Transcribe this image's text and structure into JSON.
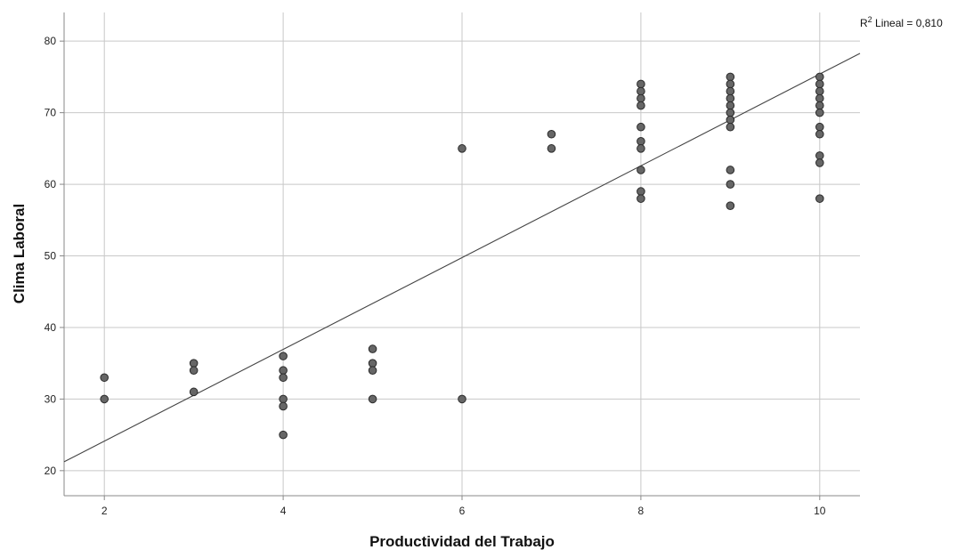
{
  "chart_data": {
    "type": "scatter",
    "title": "",
    "xlabel": "Productividad del Trabajo",
    "ylabel": "Clima Laboral",
    "xlim": [
      1.55,
      10.45
    ],
    "ylim": [
      16.5,
      84
    ],
    "xticks": [
      2,
      4,
      6,
      8,
      10
    ],
    "yticks": [
      20,
      30,
      40,
      50,
      60,
      70,
      80
    ],
    "grid": true,
    "point_color": "#666666",
    "point_edge_color": "#2a2a2a",
    "line_color": "#444444",
    "fit_line": {
      "label": "Lineal",
      "r2_value": "0,810",
      "slope": 6.41,
      "intercept": 11.3
    },
    "points": [
      [
        2,
        33
      ],
      [
        2,
        30
      ],
      [
        3,
        35
      ],
      [
        3,
        34
      ],
      [
        3,
        31
      ],
      [
        4,
        36
      ],
      [
        4,
        34
      ],
      [
        4,
        33
      ],
      [
        4,
        30
      ],
      [
        4,
        29
      ],
      [
        4,
        25
      ],
      [
        5,
        37
      ],
      [
        5,
        35
      ],
      [
        5,
        34
      ],
      [
        5,
        30
      ],
      [
        6,
        65
      ],
      [
        6,
        30
      ],
      [
        7,
        67
      ],
      [
        7,
        65
      ],
      [
        8,
        74
      ],
      [
        8,
        73
      ],
      [
        8,
        72
      ],
      [
        8,
        71
      ],
      [
        8,
        68
      ],
      [
        8,
        66
      ],
      [
        8,
        65
      ],
      [
        8,
        62
      ],
      [
        8,
        59
      ],
      [
        8,
        58
      ],
      [
        9,
        75
      ],
      [
        9,
        74
      ],
      [
        9,
        73
      ],
      [
        9,
        72
      ],
      [
        9,
        71
      ],
      [
        9,
        70
      ],
      [
        9,
        69
      ],
      [
        9,
        68
      ],
      [
        9,
        62
      ],
      [
        9,
        60
      ],
      [
        9,
        57
      ],
      [
        10,
        75
      ],
      [
        10,
        74
      ],
      [
        10,
        73
      ],
      [
        10,
        72
      ],
      [
        10,
        71
      ],
      [
        10,
        70
      ],
      [
        10,
        68
      ],
      [
        10,
        67
      ],
      [
        10,
        64
      ],
      [
        10,
        63
      ],
      [
        10,
        58
      ]
    ]
  }
}
